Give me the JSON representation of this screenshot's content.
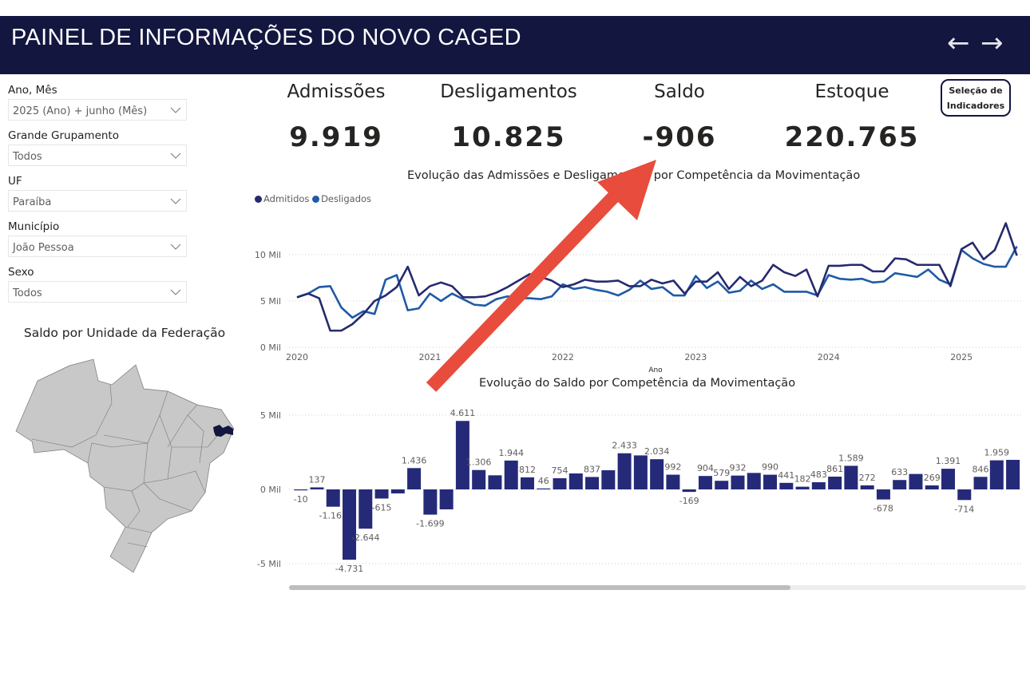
{
  "header": {
    "title": "PAINEL DE INFORMAÇÕES DO NOVO CAGED",
    "back_icon": "arrow-left",
    "forward_icon": "arrow-right",
    "color": "#13163f"
  },
  "filters": [
    {
      "label": "Ano, Mês",
      "value": "2025 (Ano) + junho (Mês)"
    },
    {
      "label": "Grande Grupamento",
      "value": "Todos"
    },
    {
      "label": "UF",
      "value": "Paraíba"
    },
    {
      "label": "Município",
      "value": "João Pessoa"
    },
    {
      "label": "Sexo",
      "value": "Todos"
    }
  ],
  "map": {
    "title": "Saldo por Unidade da Federação",
    "highlighted": "Paraíba",
    "highlight_color": "#13163f",
    "base_color": "#c8c8c8"
  },
  "kpis": [
    {
      "label": "Admissões",
      "value": "9.919"
    },
    {
      "label": "Desligamentos",
      "value": "10.825"
    },
    {
      "label": "Saldo",
      "value": "-906"
    },
    {
      "label": "Estoque",
      "value": "220.765"
    }
  ],
  "selection_button": {
    "line1": "Seleção de",
    "line2": "Indicadores"
  },
  "chart_data": [
    {
      "type": "line",
      "title": "Evolução das Admissões e Desligamentos por Competência da Movimentação",
      "xlabel": "Ano",
      "ylabel": "",
      "x_ticks": [
        "2020",
        "2021",
        "2022",
        "2023",
        "2024",
        "2025"
      ],
      "y_ticks": [
        "0 Mil",
        "5 Mil",
        "10 Mil"
      ],
      "ylim": [
        0,
        15
      ],
      "x_start": "2020-01",
      "legend": "top-left",
      "grid": true,
      "series": [
        {
          "name": "Admitidos",
          "color": "#252a6e",
          "values": [
            5.4,
            5.8,
            5.3,
            1.8,
            1.8,
            2.5,
            3.6,
            5.0,
            5.6,
            6.5,
            8.7,
            5.6,
            6.6,
            7.0,
            6.6,
            5.4,
            5.4,
            5.5,
            5.9,
            6.5,
            7.2,
            7.9,
            7.6,
            7.2,
            6.5,
            6.8,
            7.3,
            7.1,
            7.1,
            7.2,
            6.6,
            6.6,
            7.3,
            6.9,
            7.2,
            5.8,
            7.1,
            7.1,
            8.1,
            6.3,
            7.6,
            6.6,
            7.2,
            8.9,
            8.1,
            7.7,
            8.4,
            5.5,
            8.8,
            8.8,
            8.9,
            8.9,
            8.2,
            8.2,
            9.6,
            9.5,
            8.9,
            8.9,
            8.9,
            6.6,
            10.6,
            11.3,
            9.5,
            10.5,
            13.4,
            9.9
          ]
        },
        {
          "name": "Desligados",
          "color": "#1f5aa6",
          "values": [
            5.4,
            5.8,
            6.5,
            6.6,
            4.3,
            3.2,
            3.9,
            3.6,
            7.3,
            7.8,
            4.0,
            4.2,
            5.8,
            5.0,
            5.8,
            5.2,
            4.6,
            4.5,
            5.2,
            5.5,
            5.3,
            5.3,
            5.2,
            5.5,
            6.8,
            6.3,
            6.5,
            6.2,
            6.0,
            5.6,
            6.2,
            7.2,
            6.3,
            6.5,
            5.6,
            5.6,
            7.7,
            6.4,
            7.1,
            5.9,
            6.1,
            7.2,
            6.3,
            6.8,
            6.0,
            6.0,
            6.0,
            5.6,
            7.8,
            7.4,
            7.3,
            7.4,
            7.0,
            7.1,
            8.0,
            7.8,
            7.6,
            8.4,
            7.3,
            6.8,
            10.5,
            9.6,
            9.0,
            8.7,
            8.7,
            10.9
          ]
        }
      ],
      "units": "Mil"
    },
    {
      "type": "bar",
      "title": "Evolução do Saldo por Competência da Movimentação",
      "y_ticks": [
        "5 Mil",
        "0 Mil",
        "-5 Mil"
      ],
      "ylim": [
        -5000,
        5000
      ],
      "color": "#252a78",
      "grid": true,
      "values": [
        -10,
        137,
        -1165,
        -4731,
        -2644,
        -615,
        -270,
        1436,
        -1699,
        -1344,
        4611,
        1306,
        950,
        1944,
        812,
        46,
        754,
        1075,
        837,
        1290,
        2433,
        2290,
        2034,
        992,
        -169,
        904,
        579,
        932,
        1110,
        990,
        441,
        182,
        483,
        861,
        1589,
        272,
        -678,
        633,
        1040,
        269,
        1391,
        -714,
        846,
        1959,
        1990
      ],
      "labels": [
        "-10",
        "137",
        "-1.165",
        "-4.731",
        "-2.644",
        "-615",
        "",
        "1.436",
        "-1.699",
        "",
        "4.611",
        "1.306",
        "",
        "1.944",
        "812",
        "46",
        "754",
        "",
        "837",
        "",
        "2.433",
        "",
        "2.034",
        "992",
        "-169",
        "904",
        "579",
        "932",
        "",
        "990",
        "441",
        "182",
        "483",
        "861",
        "1.589",
        "272",
        "-678",
        "633",
        "",
        "269",
        "1.391",
        "-714",
        "846",
        "1.959",
        ""
      ],
      "scroll_position": 0.68
    }
  ],
  "annotation": {
    "type": "arrow",
    "color": "#e84c3d"
  }
}
